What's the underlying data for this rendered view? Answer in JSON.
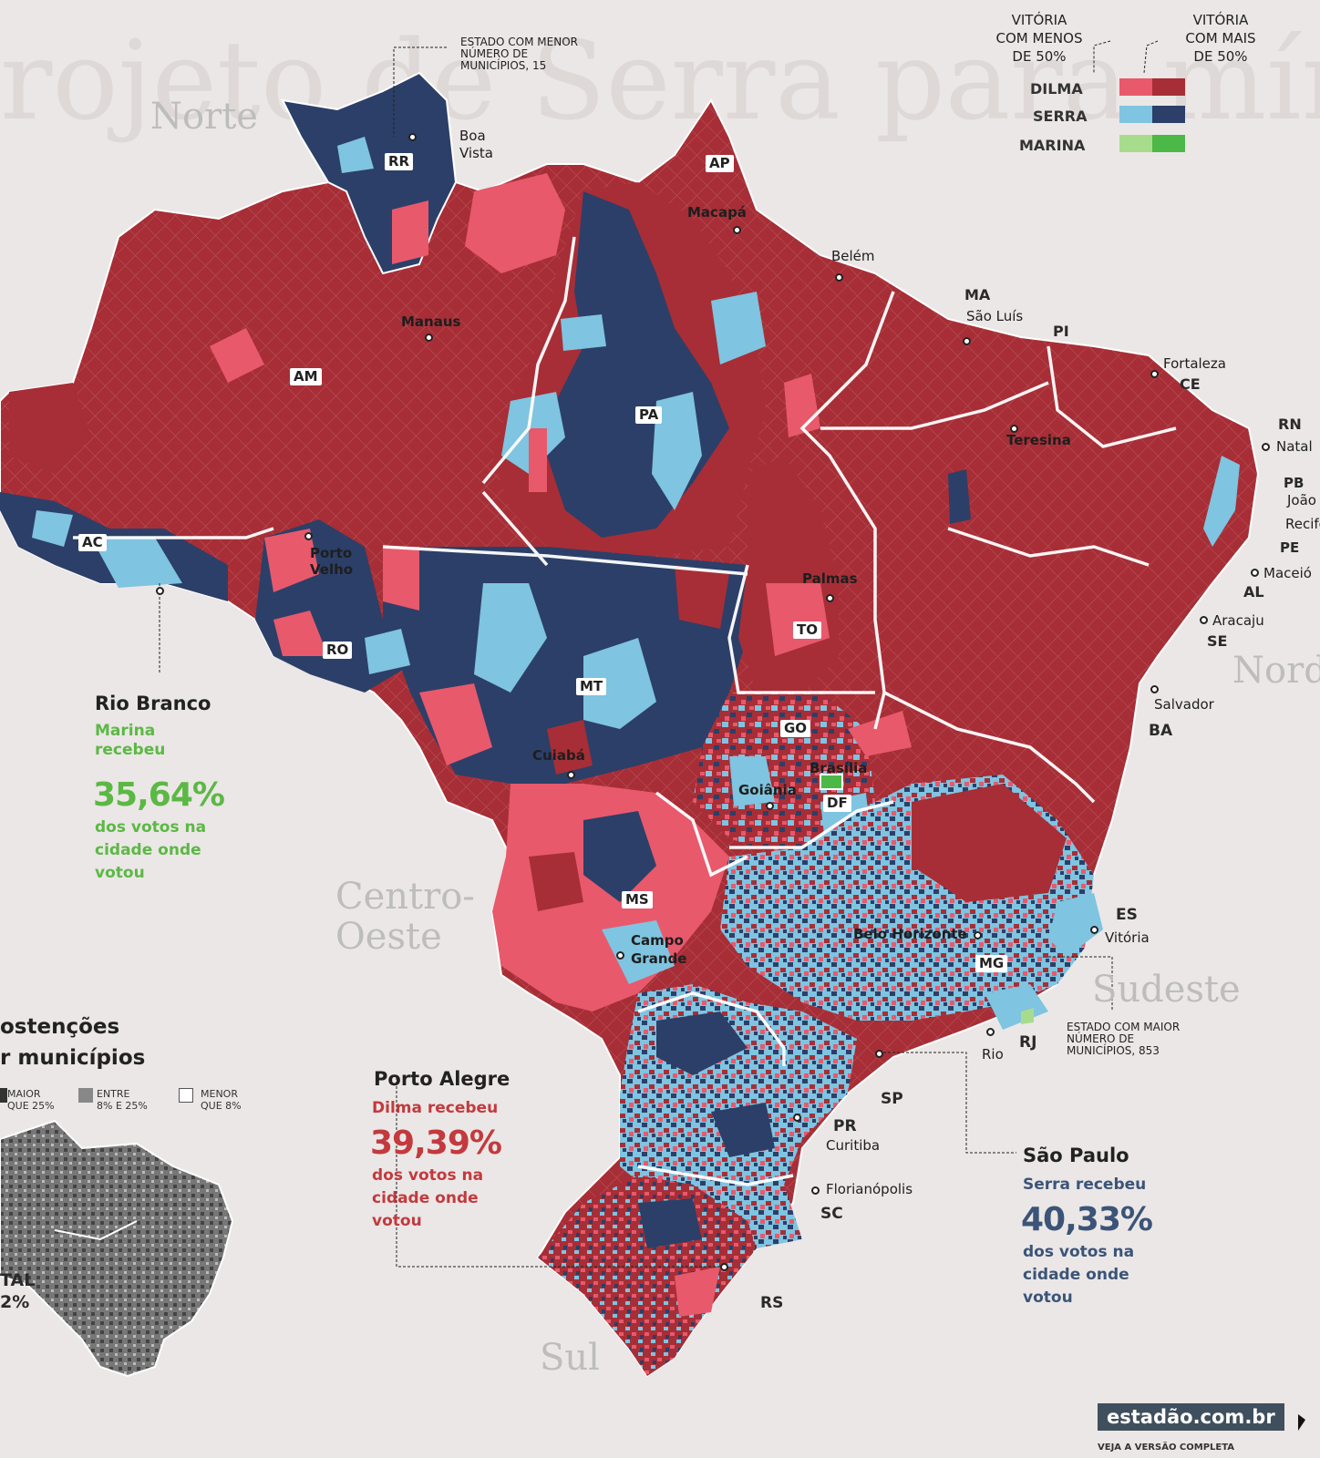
{
  "legend": {
    "col_less": "VITÓRIA\nCOM MENOS\nDE 50%",
    "col_more": "VITÓRIA\nCOM MAIS\nDE 50%",
    "rows": [
      {
        "name": "DILMA",
        "light": "#e8596c",
        "dark": "#a72e36"
      },
      {
        "name": "SERRA",
        "light": "#7fc4e0",
        "dark": "#2c3f68"
      },
      {
        "name": "MARINA",
        "light": "#a8dc8c",
        "dark": "#4bb848"
      }
    ]
  },
  "regions": [
    "Norte",
    "Centro-\nOeste",
    "Sudeste",
    "Sul",
    "Nord"
  ],
  "states": [
    "RR",
    "AP",
    "AM",
    "PA",
    "MA",
    "PI",
    "CE",
    "RN",
    "PB",
    "PE",
    "AL",
    "SE",
    "BA",
    "AC",
    "RO",
    "TO",
    "MT",
    "GO",
    "DF",
    "MS",
    "MG",
    "ES",
    "RJ",
    "SP",
    "PR",
    "SC",
    "RS"
  ],
  "cities": [
    "Boa\nVista",
    "Macapá",
    "Belém",
    "Manaus",
    "São Luís",
    "Fortaleza",
    "Teresina",
    "Natal",
    "João",
    "Recife",
    "Maceió",
    "Aracaju",
    "Salvador",
    "Porto\nVelho",
    "Palmas",
    "Cuiabá",
    "Brasília",
    "Goiânia",
    "Campo\nGrande",
    "Belo Horizonte",
    "Vitória",
    "Rio",
    "Curitiba",
    "Florianópolis"
  ],
  "notes": {
    "min_state": "ESTADO COM MENOR\nNÚMERO DE\nMUNICÍPIOS, 15",
    "max_state": "ESTADO COM MAIOR\nNÚMERO DE\nMUNICÍPIOS, 853"
  },
  "callouts": {
    "rio_branco": {
      "title": "Rio Branco",
      "lines1": "Marina\nrecebeu",
      "big": "35,64%",
      "lines2": "dos votos na\ncidade onde\nvotou",
      "color": "#5cb845"
    },
    "porto_alegre": {
      "title": "Porto Alegre",
      "lines1": "Dilma recebeu",
      "big": "39,39%",
      "lines2": "dos votos na\ncidade onde\nvotou",
      "color": "#c23a3e"
    },
    "sao_paulo": {
      "title": "São Paulo",
      "lines1": "Serra recebeu",
      "big": "40,33%",
      "lines2": "dos votos na\ncidade onde\nvotou",
      "color": "#3b5478"
    }
  },
  "abstencoes": {
    "title1": "ostenções",
    "title2": "r municípios",
    "keys": [
      "MAIOR\nQUE 25%",
      "ENTRE\n8% E 25%",
      "MENOR\nQUE 8%"
    ],
    "total_label": "TAL",
    "total_value": "2%"
  },
  "site": {
    "url": "estadão.com.br",
    "cta": "VEJA A VERSÃO COMPLETA"
  },
  "colors": {
    "dilma_dark": "#a72e36",
    "dilma_light": "#e8596c",
    "serra_dark": "#2c3f68",
    "serra_light": "#7fc4e0",
    "marina_light": "#a8dc8c",
    "marina_dark": "#4bb848"
  }
}
